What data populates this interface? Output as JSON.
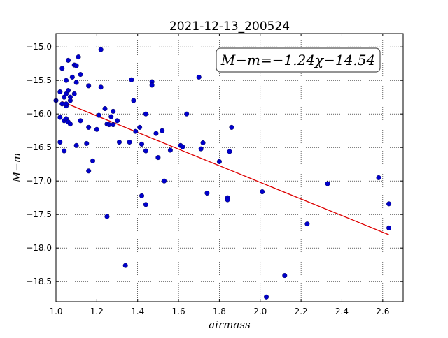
{
  "chart_data": {
    "type": "scatter",
    "title": "2021-12-13_200524",
    "xlabel": "airmass",
    "ylabel": "M−m",
    "annotation": "M−m=−1.24χ−14.54",
    "xlim": [
      1.0,
      2.7
    ],
    "ylim": [
      -18.8,
      -14.8
    ],
    "y_inverted": true,
    "grid": true,
    "grid_style": "dotted",
    "x_ticks": [
      1.0,
      1.2,
      1.4,
      1.6,
      1.8,
      2.0,
      2.2,
      2.4,
      2.6
    ],
    "x_tick_labels": [
      "1.0",
      "1.2",
      "1.4",
      "1.6",
      "1.8",
      "2.0",
      "2.2",
      "2.4",
      "2.6"
    ],
    "y_ticks": [
      -15.0,
      -15.5,
      -16.0,
      -16.5,
      -17.0,
      -17.5,
      -18.0,
      -18.5
    ],
    "y_tick_labels": [
      "−15.0",
      "−15.5",
      "−16.0",
      "−16.5",
      "−17.0",
      "−17.5",
      "−18.0",
      "−18.5"
    ],
    "point_color": "#0000cc",
    "fit_color": "#dd0000",
    "fit_line": {
      "x": [
        1.03,
        2.63
      ],
      "y": [
        -15.817,
        -17.801
      ]
    },
    "points": [
      {
        "x": 1.0,
        "y": -15.8
      },
      {
        "x": 1.02,
        "y": -15.67
      },
      {
        "x": 1.02,
        "y": -16.05
      },
      {
        "x": 1.02,
        "y": -16.42
      },
      {
        "x": 1.03,
        "y": -15.32
      },
      {
        "x": 1.03,
        "y": -15.85
      },
      {
        "x": 1.04,
        "y": -15.75
      },
      {
        "x": 1.04,
        "y": -16.1
      },
      {
        "x": 1.04,
        "y": -16.55
      },
      {
        "x": 1.05,
        "y": -15.7
      },
      {
        "x": 1.05,
        "y": -15.88
      },
      {
        "x": 1.05,
        "y": -16.07
      },
      {
        "x": 1.05,
        "y": -15.5
      },
      {
        "x": 1.05,
        "y": -15.85
      },
      {
        "x": 1.06,
        "y": -15.2
      },
      {
        "x": 1.06,
        "y": -15.65
      },
      {
        "x": 1.06,
        "y": -16.12
      },
      {
        "x": 1.07,
        "y": -15.75
      },
      {
        "x": 1.07,
        "y": -16.15
      },
      {
        "x": 1.07,
        "y": -15.8
      },
      {
        "x": 1.08,
        "y": -15.45
      },
      {
        "x": 1.09,
        "y": -15.27
      },
      {
        "x": 1.09,
        "y": -15.7
      },
      {
        "x": 1.1,
        "y": -15.28
      },
      {
        "x": 1.1,
        "y": -15.53
      },
      {
        "x": 1.1,
        "y": -16.47
      },
      {
        "x": 1.11,
        "y": -15.15
      },
      {
        "x": 1.12,
        "y": -15.41
      },
      {
        "x": 1.12,
        "y": -16.1
      },
      {
        "x": 1.15,
        "y": -16.44
      },
      {
        "x": 1.16,
        "y": -15.58
      },
      {
        "x": 1.16,
        "y": -16.2
      },
      {
        "x": 1.16,
        "y": -16.85
      },
      {
        "x": 1.18,
        "y": -16.7
      },
      {
        "x": 1.2,
        "y": -16.23
      },
      {
        "x": 1.21,
        "y": -16.02
      },
      {
        "x": 1.22,
        "y": -15.6
      },
      {
        "x": 1.22,
        "y": -15.04
      },
      {
        "x": 1.24,
        "y": -15.92
      },
      {
        "x": 1.25,
        "y": -16.15
      },
      {
        "x": 1.25,
        "y": -17.53
      },
      {
        "x": 1.26,
        "y": -16.16
      },
      {
        "x": 1.27,
        "y": -16.04
      },
      {
        "x": 1.28,
        "y": -16.16
      },
      {
        "x": 1.28,
        "y": -15.96
      },
      {
        "x": 1.3,
        "y": -16.1
      },
      {
        "x": 1.31,
        "y": -16.42
      },
      {
        "x": 1.34,
        "y": -18.26
      },
      {
        "x": 1.36,
        "y": -16.42
      },
      {
        "x": 1.37,
        "y": -15.49
      },
      {
        "x": 1.38,
        "y": -15.8
      },
      {
        "x": 1.39,
        "y": -16.26
      },
      {
        "x": 1.41,
        "y": -16.2
      },
      {
        "x": 1.42,
        "y": -16.45
      },
      {
        "x": 1.42,
        "y": -17.22
      },
      {
        "x": 1.44,
        "y": -16.0
      },
      {
        "x": 1.44,
        "y": -16.55
      },
      {
        "x": 1.44,
        "y": -17.35
      },
      {
        "x": 1.47,
        "y": -15.52
      },
      {
        "x": 1.47,
        "y": -15.57
      },
      {
        "x": 1.49,
        "y": -16.29
      },
      {
        "x": 1.5,
        "y": -16.65
      },
      {
        "x": 1.52,
        "y": -16.25
      },
      {
        "x": 1.53,
        "y": -17.0
      },
      {
        "x": 1.56,
        "y": -16.54
      },
      {
        "x": 1.61,
        "y": -16.47
      },
      {
        "x": 1.62,
        "y": -16.49
      },
      {
        "x": 1.64,
        "y": -16.0
      },
      {
        "x": 1.7,
        "y": -15.45
      },
      {
        "x": 1.71,
        "y": -16.52
      },
      {
        "x": 1.72,
        "y": -16.43
      },
      {
        "x": 1.74,
        "y": -17.18
      },
      {
        "x": 1.8,
        "y": -16.71
      },
      {
        "x": 1.84,
        "y": -17.25
      },
      {
        "x": 1.84,
        "y": -17.28
      },
      {
        "x": 1.85,
        "y": -16.56
      },
      {
        "x": 1.86,
        "y": -16.2
      },
      {
        "x": 2.01,
        "y": -17.16
      },
      {
        "x": 2.03,
        "y": -18.73
      },
      {
        "x": 2.12,
        "y": -18.41
      },
      {
        "x": 2.23,
        "y": -17.64
      },
      {
        "x": 2.33,
        "y": -17.04
      },
      {
        "x": 2.58,
        "y": -16.95
      },
      {
        "x": 2.63,
        "y": -17.34
      },
      {
        "x": 2.63,
        "y": -17.7
      }
    ]
  }
}
